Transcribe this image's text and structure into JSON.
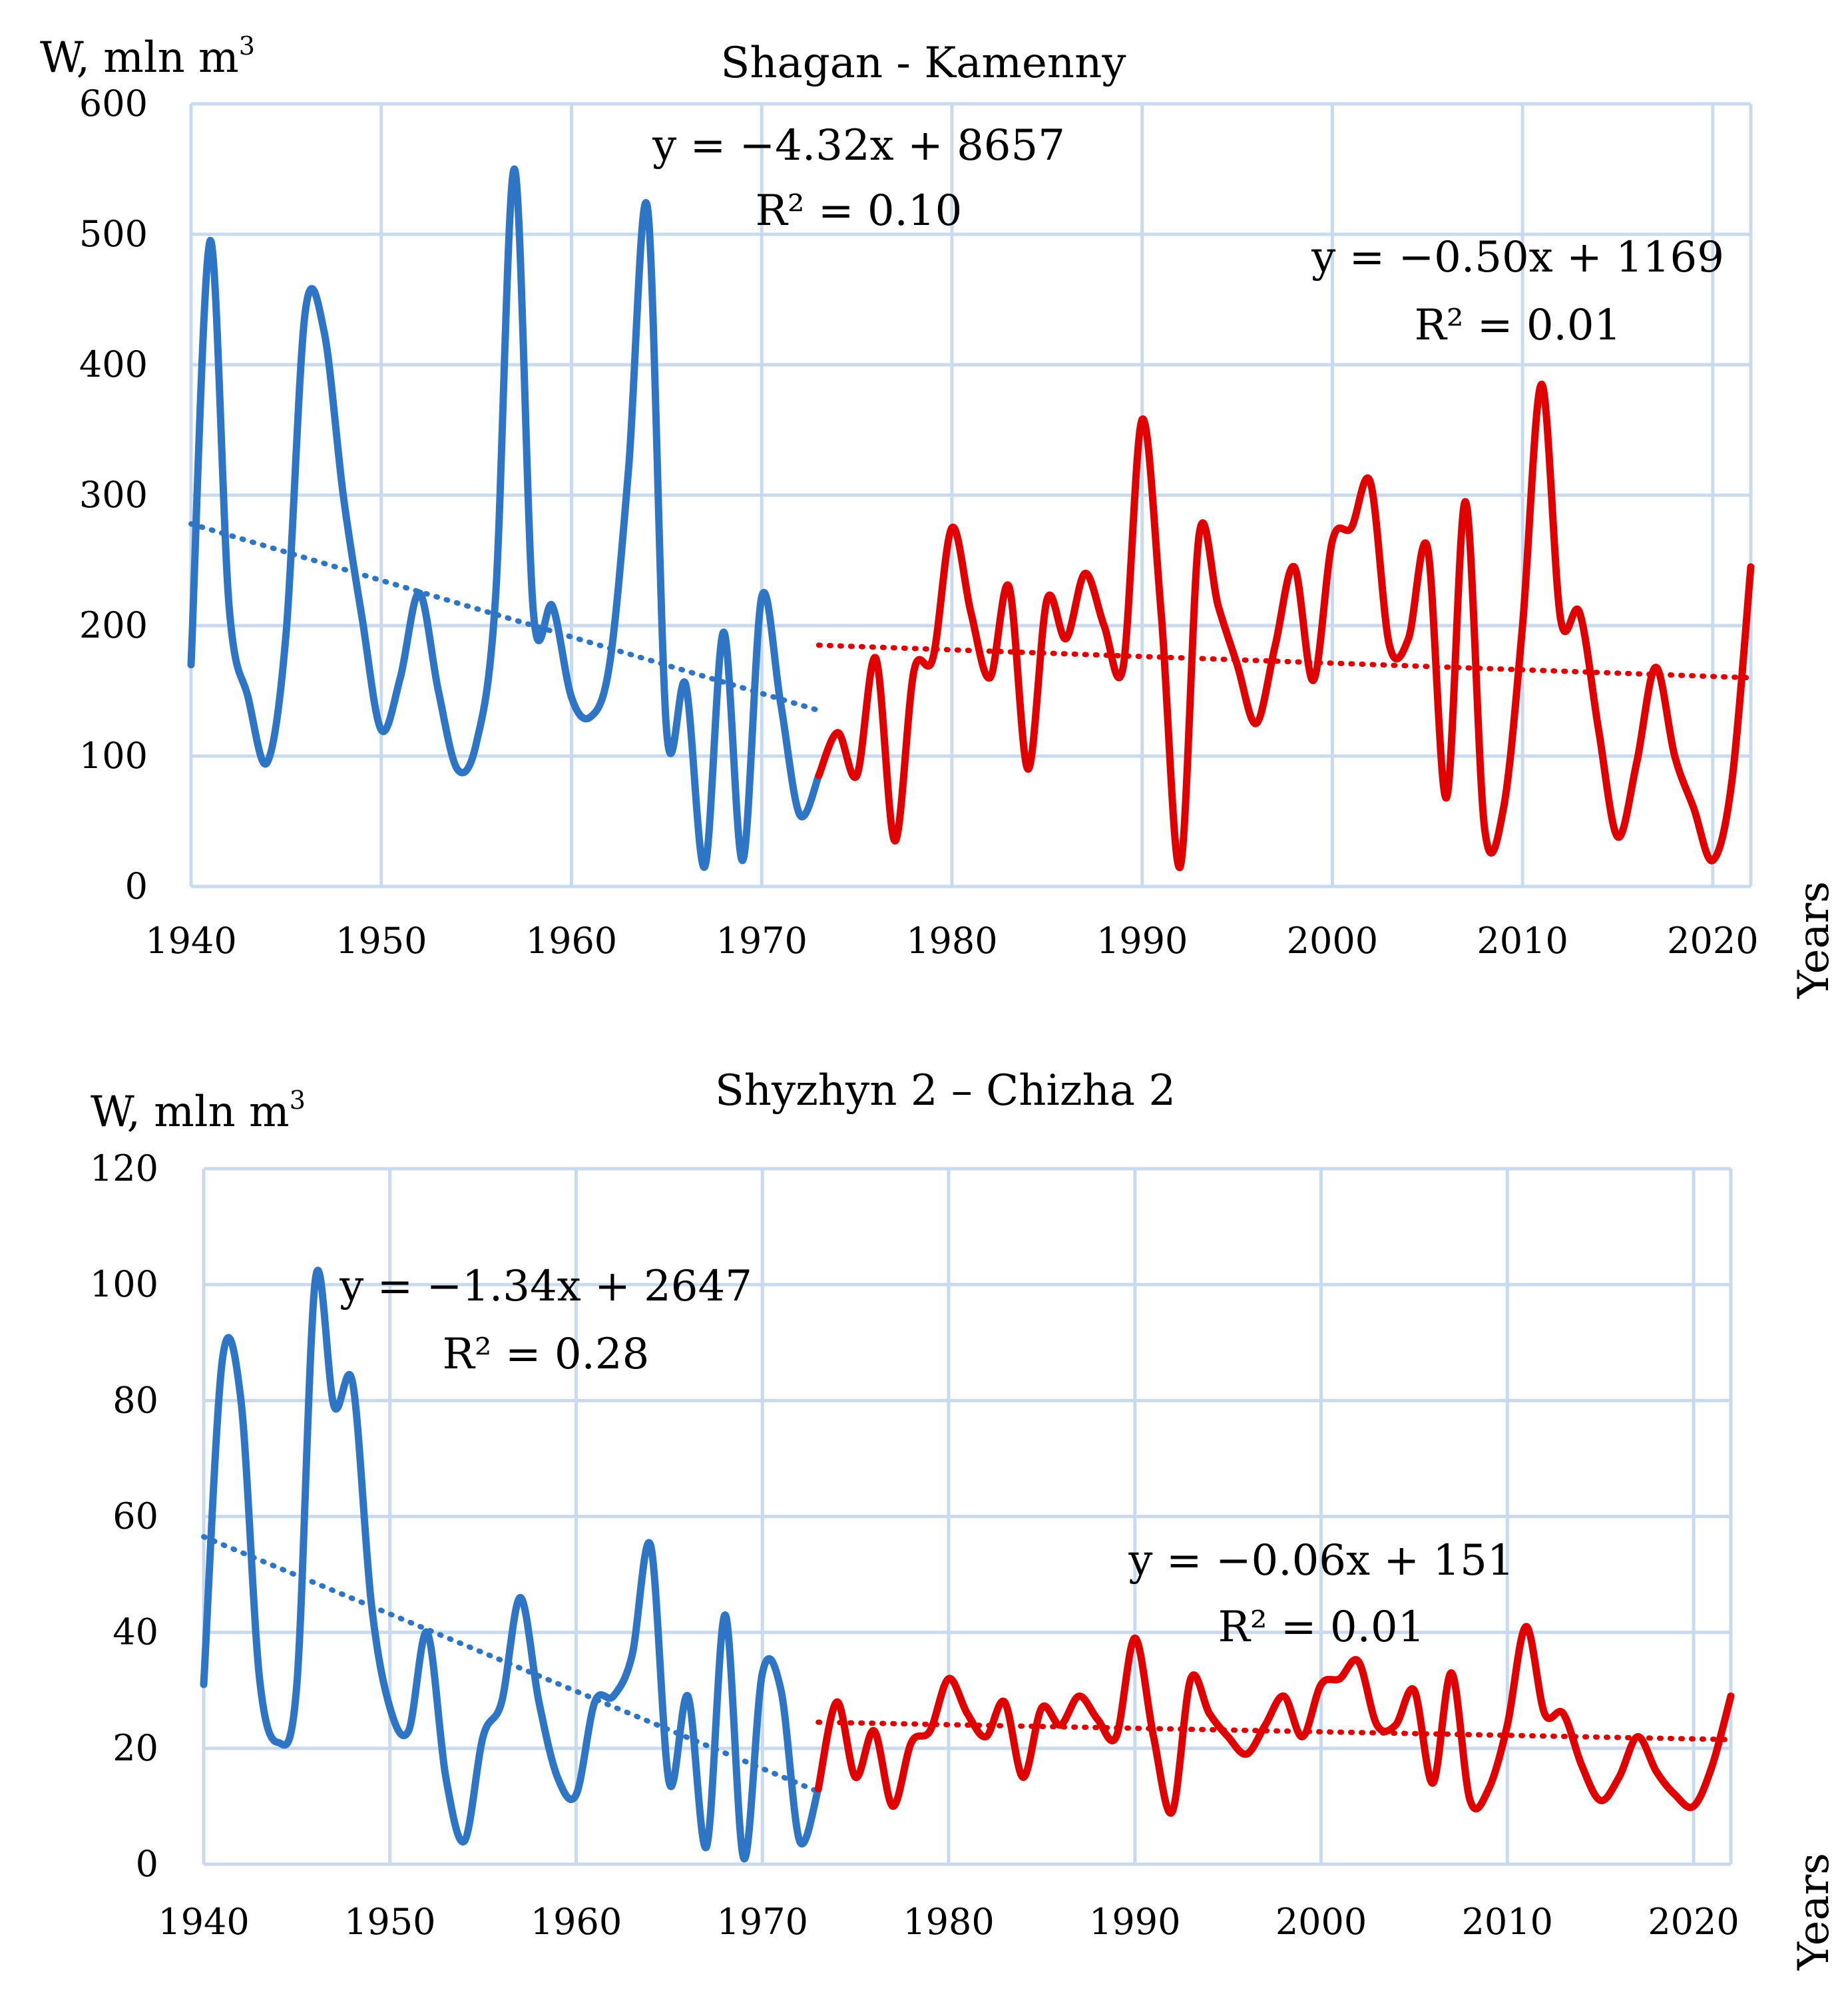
{
  "colors": {
    "before": "#2E75C6",
    "after": "#E00000",
    "grid": "#C9D9EE"
  },
  "chart_data": [
    {
      "type": "line",
      "title": "Shagan - Kamenny",
      "ylabel": "W, mln m",
      "ylabel_sup": "3",
      "xlabel": "Years",
      "xlim": [
        1940,
        2022
      ],
      "ylim": [
        0,
        600
      ],
      "xticks": [
        "1940",
        "1950",
        "1960",
        "1970",
        "1980",
        "1990",
        "2000",
        "2010",
        "2020"
      ],
      "yticks": [
        "0",
        "100",
        "200",
        "300",
        "400",
        "500",
        "600"
      ],
      "series": [
        {
          "name": "1940-1973",
          "color": "#2E75C6",
          "x": [
            1940,
            1941,
            1942,
            1943,
            1944,
            1945,
            1946,
            1947,
            1948,
            1949,
            1950,
            1951,
            1952,
            1953,
            1954,
            1955,
            1956,
            1957,
            1958,
            1959,
            1960,
            1961,
            1962,
            1963,
            1964,
            1965,
            1966,
            1967,
            1968,
            1969,
            1970,
            1971,
            1972,
            1973
          ],
          "y": [
            170,
            495,
            215,
            145,
            95,
            195,
            440,
            425,
            300,
            205,
            120,
            160,
            225,
            150,
            90,
            110,
            220,
            550,
            210,
            215,
            145,
            130,
            170,
            320,
            520,
            120,
            155,
            15,
            195,
            20,
            222,
            140,
            55,
            85
          ]
        },
        {
          "name": "1973-2022",
          "color": "#E00000",
          "x": [
            1973,
            1974,
            1975,
            1976,
            1977,
            1978,
            1979,
            1980,
            1981,
            1982,
            1983,
            1984,
            1985,
            1986,
            1987,
            1988,
            1989,
            1990,
            1991,
            1992,
            1993,
            1994,
            1995,
            1996,
            1997,
            1998,
            1999,
            2000,
            2001,
            2002,
            2003,
            2004,
            2005,
            2006,
            2007,
            2008,
            2009,
            2010,
            2011,
            2012,
            2013,
            2014,
            2015,
            2016,
            2017,
            2018,
            2019,
            2020,
            2021,
            2022
          ],
          "y": [
            85,
            118,
            85,
            175,
            35,
            165,
            175,
            275,
            210,
            160,
            230,
            90,
            220,
            190,
            240,
            200,
            168,
            358,
            210,
            15,
            270,
            215,
            170,
            125,
            185,
            245,
            158,
            265,
            275,
            310,
            185,
            190,
            260,
            68,
            295,
            45,
            60,
            200,
            385,
            205,
            210,
            120,
            38,
            95,
            168,
            100,
            60,
            20,
            80,
            245
          ]
        }
      ],
      "trendlines": [
        {
          "series": "1940-1973",
          "x": [
            1940,
            1973
          ],
          "y": [
            278,
            135
          ],
          "equation": "y = −4.32x + 8657",
          "r2": "R² = 0.10"
        },
        {
          "series": "1973-2022",
          "x": [
            1973,
            2022
          ],
          "y": [
            185,
            160
          ],
          "equation": "y = −0.50x + 1169",
          "r2": "R² = 0.01"
        }
      ]
    },
    {
      "type": "line",
      "title": "Shyzhyn 2 – Chizha 2",
      "ylabel": "W, mln m",
      "ylabel_sup": "3",
      "xlabel": "Years",
      "xlim": [
        1940,
        2022
      ],
      "ylim": [
        0,
        120
      ],
      "xticks": [
        "1940",
        "1950",
        "1960",
        "1970",
        "1980",
        "1990",
        "2000",
        "2010",
        "2020"
      ],
      "yticks": [
        "0",
        "20",
        "40",
        "60",
        "80",
        "100",
        "120"
      ],
      "series": [
        {
          "name": "1940-1973",
          "color": "#2E75C6",
          "x": [
            1940,
            1941,
            1942,
            1943,
            1944,
            1945,
            1946,
            1947,
            1948,
            1949,
            1950,
            1951,
            1952,
            1953,
            1954,
            1955,
            1956,
            1957,
            1958,
            1959,
            1960,
            1961,
            1962,
            1963,
            1964,
            1965,
            1966,
            1967,
            1968,
            1969,
            1970,
            1971,
            1972,
            1973
          ],
          "y": [
            31,
            87,
            80,
            32,
            21,
            31,
            101,
            79,
            83,
            45,
            27,
            23,
            40,
            15,
            4,
            22,
            28,
            46,
            28,
            15,
            12,
            28,
            29,
            36,
            55,
            14,
            29,
            3,
            43,
            1,
            33,
            30,
            4,
            13
          ]
        },
        {
          "name": "1973-2022",
          "color": "#E00000",
          "x": [
            1973,
            1974,
            1975,
            1976,
            1977,
            1978,
            1979,
            1980,
            1981,
            1982,
            1983,
            1984,
            1985,
            1986,
            1987,
            1988,
            1989,
            1990,
            1991,
            1992,
            1993,
            1994,
            1995,
            1996,
            1997,
            1998,
            1999,
            2000,
            2001,
            2002,
            2003,
            2004,
            2005,
            2006,
            2007,
            2008,
            2009,
            2010,
            2011,
            2012,
            2013,
            2014,
            2015,
            2016,
            2017,
            2018,
            2019,
            2020,
            2021,
            2022
          ],
          "y": [
            13,
            28,
            15,
            23,
            10,
            21,
            23,
            32,
            26,
            22,
            28,
            15,
            27,
            24,
            29,
            25,
            22,
            39,
            22,
            9,
            32,
            26,
            22,
            19,
            24,
            29,
            22,
            31,
            32,
            35,
            24,
            24,
            30,
            14,
            33,
            11,
            13,
            24,
            41,
            26,
            26,
            17,
            11,
            15,
            22,
            16,
            12,
            10,
            17,
            29
          ]
        }
      ],
      "trendlines": [
        {
          "series": "1940-1973",
          "x": [
            1940,
            1973
          ],
          "y": [
            56.5,
            12.5
          ],
          "equation": "y = −1.34x + 2647",
          "r2": "R² = 0.28"
        },
        {
          "series": "1973-2022",
          "x": [
            1973,
            2022
          ],
          "y": [
            24.5,
            21.5
          ],
          "equation": "y = −0.06x + 151",
          "r2": "R² = 0.01"
        }
      ]
    }
  ]
}
